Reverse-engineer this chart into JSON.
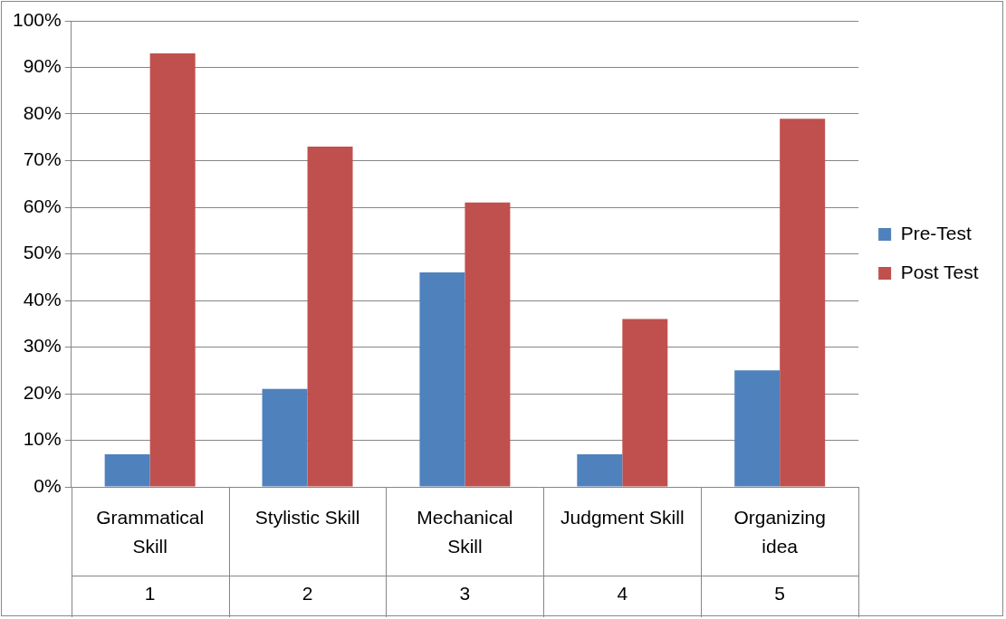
{
  "chart_data": {
    "type": "bar",
    "categories": [
      "Grammatical Skill",
      "Stylistic Skill",
      "Mechanical Skill",
      "Judgment Skill",
      "Organizing idea"
    ],
    "series": [
      {
        "name": "Pre-Test",
        "color": "#4f81bd",
        "values": [
          7,
          21,
          46,
          7,
          25
        ]
      },
      {
        "name": "Post Test",
        "color": "#c0504d",
        "values": [
          93,
          73,
          61,
          36,
          79
        ]
      }
    ],
    "annotations": [
      "1",
      "2",
      "3",
      "4",
      "5"
    ],
    "ylim": [
      0,
      100
    ],
    "yticks": [
      {
        "value": 0,
        "label": "0%"
      },
      {
        "value": 10,
        "label": "10%"
      },
      {
        "value": 20,
        "label": "20%"
      },
      {
        "value": 30,
        "label": "30%"
      },
      {
        "value": 40,
        "label": "40%"
      },
      {
        "value": 50,
        "label": "50%"
      },
      {
        "value": 60,
        "label": "60%"
      },
      {
        "value": 70,
        "label": "70%"
      },
      {
        "value": 80,
        "label": "80%"
      },
      {
        "value": 90,
        "label": "90%"
      },
      {
        "value": 100,
        "label": "100%"
      }
    ],
    "grid": "y",
    "legend": "right"
  }
}
